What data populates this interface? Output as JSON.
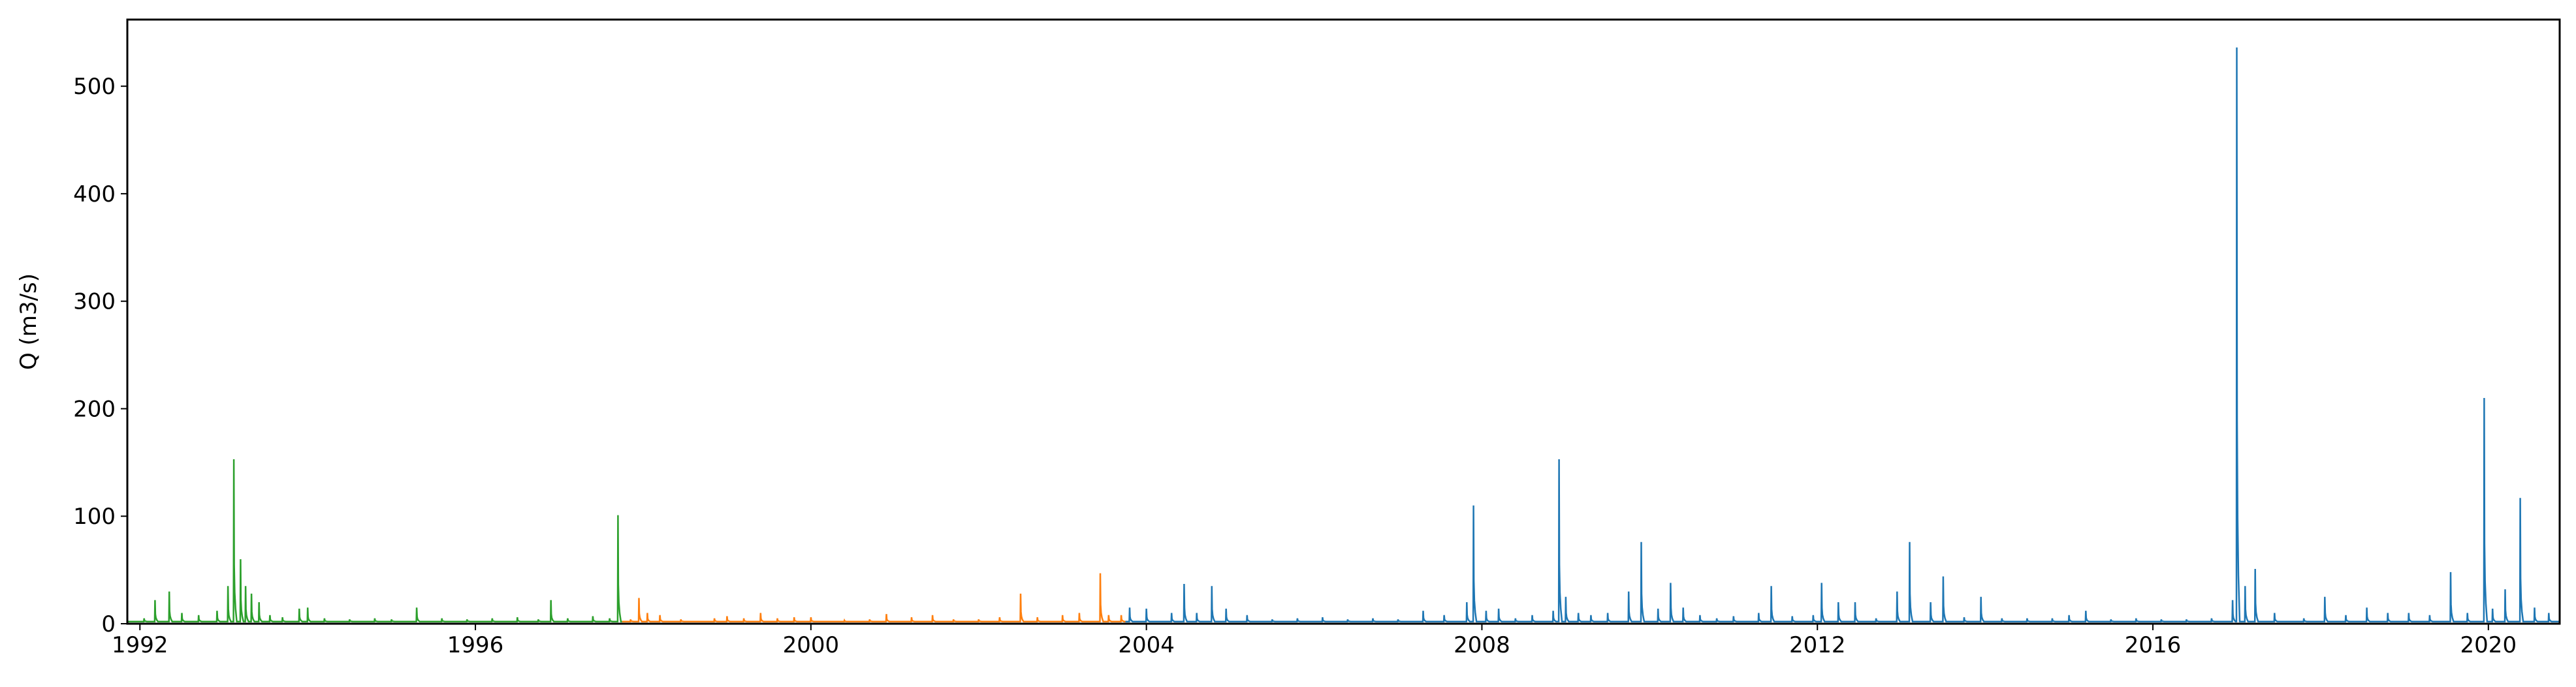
{
  "chart_data": {
    "type": "line",
    "title": "",
    "xlabel": "",
    "ylabel": "Q (m3/s)",
    "xlim": [
      1991.85,
      2020.85
    ],
    "ylim": [
      0,
      562
    ],
    "x_ticks": [
      {
        "value": 1992,
        "label": "1992"
      },
      {
        "value": 1996,
        "label": "1996"
      },
      {
        "value": 2000,
        "label": "2000"
      },
      {
        "value": 2004,
        "label": "2004"
      },
      {
        "value": 2008,
        "label": "2008"
      },
      {
        "value": 2012,
        "label": "2012"
      },
      {
        "value": 2016,
        "label": "2016"
      },
      {
        "value": 2020,
        "label": "2020"
      }
    ],
    "y_ticks": [
      {
        "value": 0,
        "label": "0"
      },
      {
        "value": 100,
        "label": "100"
      },
      {
        "value": 200,
        "label": "200"
      },
      {
        "value": 300,
        "label": "300"
      },
      {
        "value": 400,
        "label": "400"
      },
      {
        "value": 500,
        "label": "500"
      }
    ],
    "grid": false,
    "legend": "none",
    "series": [
      {
        "color": "#2ca02c",
        "x_range": [
          1991.85,
          1997.75
        ],
        "baseflow": 2,
        "peaks": [
          [
            1992.05,
            5
          ],
          [
            1992.18,
            22
          ],
          [
            1992.35,
            30
          ],
          [
            1992.5,
            10
          ],
          [
            1992.7,
            8
          ],
          [
            1992.92,
            12
          ],
          [
            1993.05,
            35
          ],
          [
            1993.12,
            153
          ],
          [
            1993.15,
            105
          ],
          [
            1993.2,
            60
          ],
          [
            1993.26,
            35
          ],
          [
            1993.33,
            28
          ],
          [
            1993.42,
            20
          ],
          [
            1993.55,
            8
          ],
          [
            1993.7,
            6
          ],
          [
            1993.9,
            14
          ],
          [
            1994.0,
            15
          ],
          [
            1994.2,
            5
          ],
          [
            1994.5,
            4
          ],
          [
            1994.8,
            5
          ],
          [
            1995.0,
            4
          ],
          [
            1995.3,
            15
          ],
          [
            1995.6,
            5
          ],
          [
            1995.9,
            4
          ],
          [
            1996.2,
            5
          ],
          [
            1996.5,
            6
          ],
          [
            1996.75,
            4
          ],
          [
            1996.9,
            22
          ],
          [
            1997.1,
            5
          ],
          [
            1997.4,
            7
          ],
          [
            1997.6,
            5
          ],
          [
            1997.7,
            101
          ]
        ]
      },
      {
        "color": "#ff7f0e",
        "x_range": [
          1997.75,
          2003.75
        ],
        "baseflow": 2,
        "peaks": [
          [
            1997.85,
            4
          ],
          [
            1997.95,
            24
          ],
          [
            1998.05,
            10
          ],
          [
            1998.2,
            8
          ],
          [
            1998.45,
            4
          ],
          [
            1998.85,
            5
          ],
          [
            1999.0,
            7
          ],
          [
            1999.2,
            5
          ],
          [
            1999.4,
            10
          ],
          [
            1999.6,
            5
          ],
          [
            1999.8,
            6
          ],
          [
            2000.0,
            6
          ],
          [
            2000.4,
            3
          ],
          [
            2000.7,
            4
          ],
          [
            2000.9,
            9
          ],
          [
            2001.2,
            6
          ],
          [
            2001.45,
            8
          ],
          [
            2001.7,
            4
          ],
          [
            2002.0,
            4
          ],
          [
            2002.25,
            6
          ],
          [
            2002.5,
            28
          ],
          [
            2002.7,
            6
          ],
          [
            2003.0,
            8
          ],
          [
            2003.2,
            10
          ],
          [
            2003.45,
            47
          ],
          [
            2003.55,
            8
          ],
          [
            2003.7,
            8
          ]
        ]
      },
      {
        "color": "#1f77b4",
        "x_range": [
          2003.75,
          2020.85
        ],
        "baseflow": 2,
        "peaks": [
          [
            2003.8,
            15
          ],
          [
            2004.0,
            14
          ],
          [
            2004.3,
            10
          ],
          [
            2004.45,
            37
          ],
          [
            2004.6,
            10
          ],
          [
            2004.78,
            35
          ],
          [
            2004.95,
            14
          ],
          [
            2005.2,
            8
          ],
          [
            2005.5,
            4
          ],
          [
            2005.8,
            5
          ],
          [
            2006.1,
            6
          ],
          [
            2006.4,
            4
          ],
          [
            2006.7,
            5
          ],
          [
            2007.0,
            4
          ],
          [
            2007.3,
            12
          ],
          [
            2007.55,
            8
          ],
          [
            2007.82,
            20
          ],
          [
            2007.9,
            110
          ],
          [
            2008.05,
            12
          ],
          [
            2008.2,
            14
          ],
          [
            2008.4,
            5
          ],
          [
            2008.6,
            8
          ],
          [
            2008.85,
            12
          ],
          [
            2008.92,
            153
          ],
          [
            2009.0,
            25
          ],
          [
            2009.15,
            10
          ],
          [
            2009.3,
            8
          ],
          [
            2009.5,
            10
          ],
          [
            2009.75,
            30
          ],
          [
            2009.9,
            76
          ],
          [
            2010.1,
            14
          ],
          [
            2010.25,
            38
          ],
          [
            2010.4,
            15
          ],
          [
            2010.6,
            8
          ],
          [
            2010.8,
            5
          ],
          [
            2011.0,
            7
          ],
          [
            2011.3,
            10
          ],
          [
            2011.45,
            35
          ],
          [
            2011.7,
            7
          ],
          [
            2011.95,
            8
          ],
          [
            2012.05,
            38
          ],
          [
            2012.25,
            20
          ],
          [
            2012.45,
            20
          ],
          [
            2012.7,
            5
          ],
          [
            2012.95,
            30
          ],
          [
            2013.1,
            76
          ],
          [
            2013.35,
            20
          ],
          [
            2013.5,
            44
          ],
          [
            2013.75,
            6
          ],
          [
            2013.95,
            25
          ],
          [
            2014.2,
            5
          ],
          [
            2014.5,
            5
          ],
          [
            2014.8,
            5
          ],
          [
            2015.0,
            8
          ],
          [
            2015.2,
            12
          ],
          [
            2015.5,
            4
          ],
          [
            2015.8,
            5
          ],
          [
            2016.1,
            4
          ],
          [
            2016.4,
            4
          ],
          [
            2016.7,
            5
          ],
          [
            2016.95,
            22
          ],
          [
            2017.0,
            536
          ],
          [
            2017.1,
            35
          ],
          [
            2017.22,
            51
          ],
          [
            2017.45,
            10
          ],
          [
            2017.8,
            5
          ],
          [
            2018.05,
            25
          ],
          [
            2018.3,
            8
          ],
          [
            2018.55,
            15
          ],
          [
            2018.8,
            10
          ],
          [
            2019.05,
            10
          ],
          [
            2019.3,
            8
          ],
          [
            2019.55,
            48
          ],
          [
            2019.75,
            10
          ],
          [
            2019.95,
            210
          ],
          [
            2020.05,
            14
          ],
          [
            2020.2,
            32
          ],
          [
            2020.38,
            117
          ],
          [
            2020.55,
            15
          ],
          [
            2020.72,
            10
          ]
        ]
      }
    ]
  }
}
